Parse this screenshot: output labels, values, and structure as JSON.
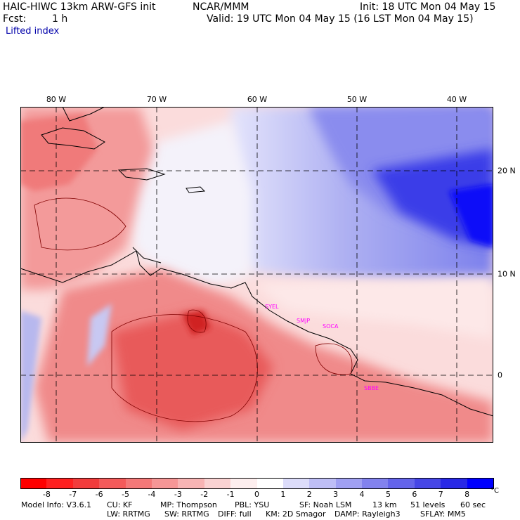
{
  "header": {
    "model_line": "HAIC-HIWC 13km ARW-GFS init",
    "org": "NCAR/MMM",
    "init": "Init: 18 UTC Mon 04 May 15",
    "fcst_label": "Fcst:",
    "fcst_value": "1 h",
    "valid": "Valid: 19 UTC Mon 04 May 15 (16 LST Mon 04 May 15)",
    "field": "Lifted index"
  },
  "map": {
    "lon_labels": [
      "80 W",
      "70 W",
      "60 W",
      "50 W",
      "40 W"
    ],
    "lat_labels": [
      "20 N",
      "10 N",
      "0"
    ],
    "stations": [
      "SYEL",
      "SMJP",
      "SOCA",
      "SBBE"
    ]
  },
  "colorbar": {
    "labels": [
      "-8",
      "-7",
      "-6",
      "-5",
      "-4",
      "-3",
      "-2",
      "-1",
      "0",
      "1",
      "2",
      "3",
      "4",
      "5",
      "6",
      "7",
      "8"
    ],
    "unit": "°C",
    "colors": [
      "#ff0000",
      "#ff2020",
      "#f23c3c",
      "#f45a5a",
      "#f47878",
      "#f69696",
      "#f8b4b4",
      "#fad2d2",
      "#fdeeee",
      "#ffffff",
      "#dcdcfa",
      "#bebef6",
      "#a0a0f2",
      "#8282ee",
      "#6464ea",
      "#4646e6",
      "#2828e6",
      "#0000ff"
    ]
  },
  "footer": {
    "line1": {
      "model_info": "Model Info: V3.6.1",
      "cu": "CU: KF",
      "mp": "MP: Thompson",
      "pbl": "PBL: YSU",
      "sf": "SF: Noah LSM",
      "res": "13 km",
      "levels": "51 levels",
      "dt": "60 sec"
    },
    "line2": {
      "lw": "LW: RRTMG",
      "sw": "SW: RRTMG",
      "diff": "DIFF: full",
      "km": "KM: 2D Smagor",
      "damp": "DAMP: Rayleigh3",
      "sflay": "SFLAY: MM5"
    }
  }
}
